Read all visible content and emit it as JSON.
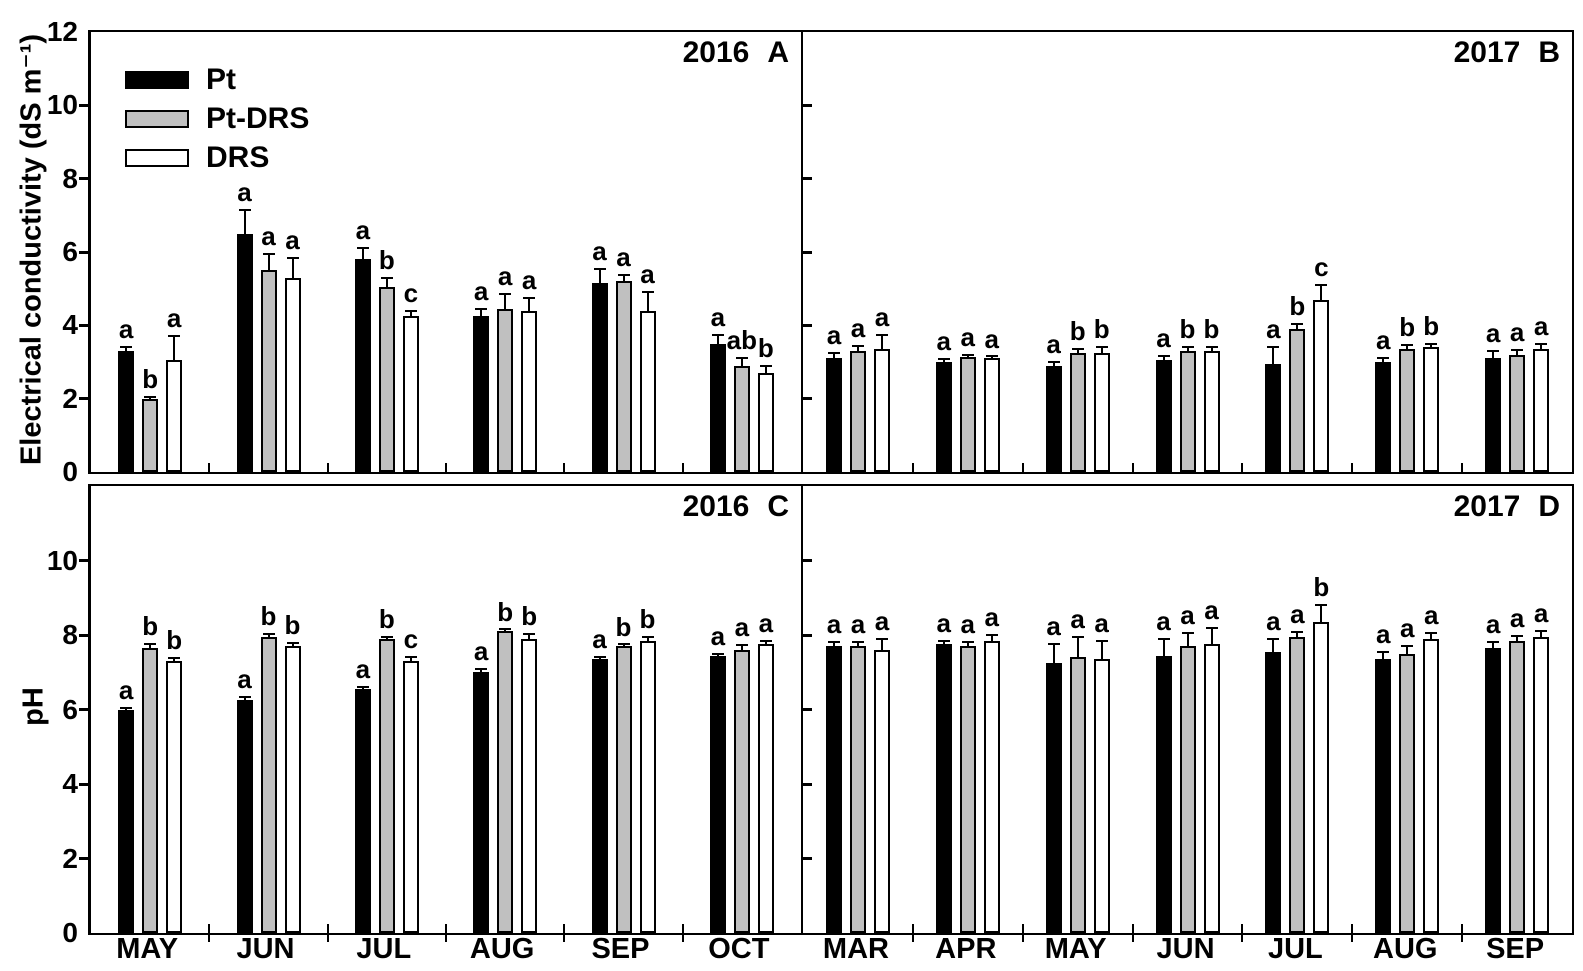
{
  "legend": {
    "position": "top-left of panel A",
    "items": [
      {
        "label": "Pt",
        "fill": "#000000"
      },
      {
        "label": "Pt-DRS",
        "fill": "#c0c0c0"
      },
      {
        "label": "DRS",
        "fill": "#ffffff"
      }
    ]
  },
  "colors": {
    "bar_outline": "#000000",
    "black_series": "#000000",
    "gray_series": "#c0c0c0",
    "white_series": "#ffffff"
  },
  "chart_data": [
    {
      "type": "bar",
      "year": "2016",
      "panel_letter": "A",
      "title": "2016 A",
      "ylabel": "Electrical conductivity (dS m⁻¹)",
      "ylim": [
        0,
        12
      ],
      "ytick_values": [
        0,
        2,
        4,
        6,
        8,
        10,
        12
      ],
      "show_ytick_labels": true,
      "show_month_labels": false,
      "grid": false,
      "categories": [
        "MAY",
        "JUN",
        "JUL",
        "AUG",
        "SEP",
        "OCT"
      ],
      "series": [
        {
          "name": "Pt",
          "fill": "#000000",
          "values": [
            3.3,
            6.5,
            5.8,
            4.25,
            5.15,
            3.5
          ],
          "errors": [
            0.1,
            0.65,
            0.3,
            0.2,
            0.4,
            0.25
          ],
          "letters": [
            "a",
            "a",
            "a",
            "a",
            "a",
            "a"
          ]
        },
        {
          "name": "Pt-DRS",
          "fill": "#c0c0c0",
          "values": [
            2.0,
            5.5,
            5.05,
            4.45,
            5.2,
            2.9
          ],
          "errors": [
            0.05,
            0.45,
            0.25,
            0.4,
            0.18,
            0.22
          ],
          "letters": [
            "b",
            "a",
            "b",
            "a",
            "a",
            "ab"
          ]
        },
        {
          "name": "DRS",
          "fill": "#ffffff",
          "values": [
            3.05,
            5.3,
            4.25,
            4.4,
            4.4,
            2.7
          ],
          "errors": [
            0.65,
            0.55,
            0.14,
            0.35,
            0.5,
            0.18
          ],
          "letters": [
            "a",
            "a",
            "c",
            "a",
            "a",
            "b"
          ]
        }
      ]
    },
    {
      "type": "bar",
      "year": "2017",
      "panel_letter": "B",
      "title": "2017 B",
      "ylabel": "",
      "ylim": [
        0,
        12
      ],
      "ytick_values": [
        0,
        2,
        4,
        6,
        8,
        10,
        12
      ],
      "show_ytick_labels": false,
      "show_month_labels": false,
      "grid": false,
      "categories": [
        "MAR",
        "APR",
        "MAY",
        "JUN",
        "JUL",
        "AUG",
        "SEP"
      ],
      "series": [
        {
          "name": "Pt",
          "fill": "#000000",
          "values": [
            3.1,
            3.0,
            2.9,
            3.05,
            2.95,
            3.0,
            3.1
          ],
          "errors": [
            0.15,
            0.07,
            0.1,
            0.12,
            0.45,
            0.12,
            0.2
          ],
          "letters": [
            "a",
            "a",
            "a",
            "a",
            "a",
            "a",
            "a"
          ]
        },
        {
          "name": "Pt-DRS",
          "fill": "#c0c0c0",
          "values": [
            3.3,
            3.15,
            3.25,
            3.3,
            3.9,
            3.35,
            3.2
          ],
          "errors": [
            0.15,
            0.05,
            0.1,
            0.1,
            0.15,
            0.12,
            0.12
          ],
          "letters": [
            "a",
            "a",
            "b",
            "b",
            "b",
            "b",
            "a"
          ]
        },
        {
          "name": "DRS",
          "fill": "#ffffff",
          "values": [
            3.35,
            3.1,
            3.25,
            3.3,
            4.7,
            3.4,
            3.35
          ],
          "errors": [
            0.4,
            0.05,
            0.15,
            0.12,
            0.4,
            0.1,
            0.15
          ],
          "letters": [
            "a",
            "a",
            "b",
            "b",
            "c",
            "b",
            "a"
          ]
        }
      ]
    },
    {
      "type": "bar",
      "year": "2016",
      "panel_letter": "C",
      "title": "2016 C",
      "ylabel": "pH",
      "ylim": [
        0,
        12
      ],
      "ytick_values": [
        0,
        2,
        4,
        6,
        8,
        10
      ],
      "show_ytick_labels": true,
      "show_month_labels": true,
      "grid": false,
      "categories": [
        "MAY",
        "JUN",
        "JUL",
        "AUG",
        "SEP",
        "OCT"
      ],
      "series": [
        {
          "name": "Pt",
          "fill": "#000000",
          "values": [
            6.0,
            6.25,
            6.55,
            7.0,
            7.35,
            7.45
          ],
          "errors": [
            0.05,
            0.08,
            0.06,
            0.1,
            0.05,
            0.05
          ],
          "letters": [
            "a",
            "a",
            "a",
            "a",
            "a",
            "a"
          ]
        },
        {
          "name": "Pt-DRS",
          "fill": "#c0c0c0",
          "values": [
            7.65,
            7.95,
            7.9,
            8.1,
            7.7,
            7.6
          ],
          "errors": [
            0.1,
            0.07,
            0.04,
            0.04,
            0.04,
            0.12
          ],
          "letters": [
            "b",
            "b",
            "b",
            "b",
            "b",
            "a"
          ]
        },
        {
          "name": "DRS",
          "fill": "#ffffff",
          "values": [
            7.3,
            7.7,
            7.3,
            7.9,
            7.85,
            7.75
          ],
          "errors": [
            0.07,
            0.08,
            0.1,
            0.12,
            0.1,
            0.08
          ],
          "letters": [
            "b",
            "b",
            "c",
            "b",
            "b",
            "a"
          ]
        }
      ]
    },
    {
      "type": "bar",
      "year": "2017",
      "panel_letter": "D",
      "title": "2017 D",
      "ylabel": "",
      "ylim": [
        0,
        12
      ],
      "ytick_values": [
        0,
        2,
        4,
        6,
        8,
        10
      ],
      "show_ytick_labels": false,
      "show_month_labels": true,
      "grid": false,
      "categories": [
        "MAR",
        "APR",
        "MAY",
        "JUN",
        "JUL",
        "AUG",
        "SEP"
      ],
      "series": [
        {
          "name": "Pt",
          "fill": "#000000",
          "values": [
            7.7,
            7.75,
            7.25,
            7.45,
            7.55,
            7.35,
            7.65
          ],
          "errors": [
            0.12,
            0.08,
            0.5,
            0.45,
            0.35,
            0.2,
            0.15
          ],
          "letters": [
            "a",
            "a",
            "a",
            "a",
            "a",
            "a",
            "a"
          ]
        },
        {
          "name": "Pt-DRS",
          "fill": "#c0c0c0",
          "values": [
            7.7,
            7.7,
            7.4,
            7.7,
            7.95,
            7.5,
            7.85
          ],
          "errors": [
            0.12,
            0.1,
            0.55,
            0.35,
            0.12,
            0.2,
            0.12
          ],
          "letters": [
            "a",
            "a",
            "a",
            "a",
            "a",
            "a",
            "a"
          ]
        },
        {
          "name": "DRS",
          "fill": "#ffffff",
          "values": [
            7.6,
            7.85,
            7.35,
            7.75,
            8.35,
            7.9,
            7.95
          ],
          "errors": [
            0.3,
            0.16,
            0.5,
            0.45,
            0.45,
            0.15,
            0.15
          ],
          "letters": [
            "a",
            "a",
            "a",
            "a",
            "b",
            "a",
            "a"
          ]
        }
      ]
    }
  ]
}
